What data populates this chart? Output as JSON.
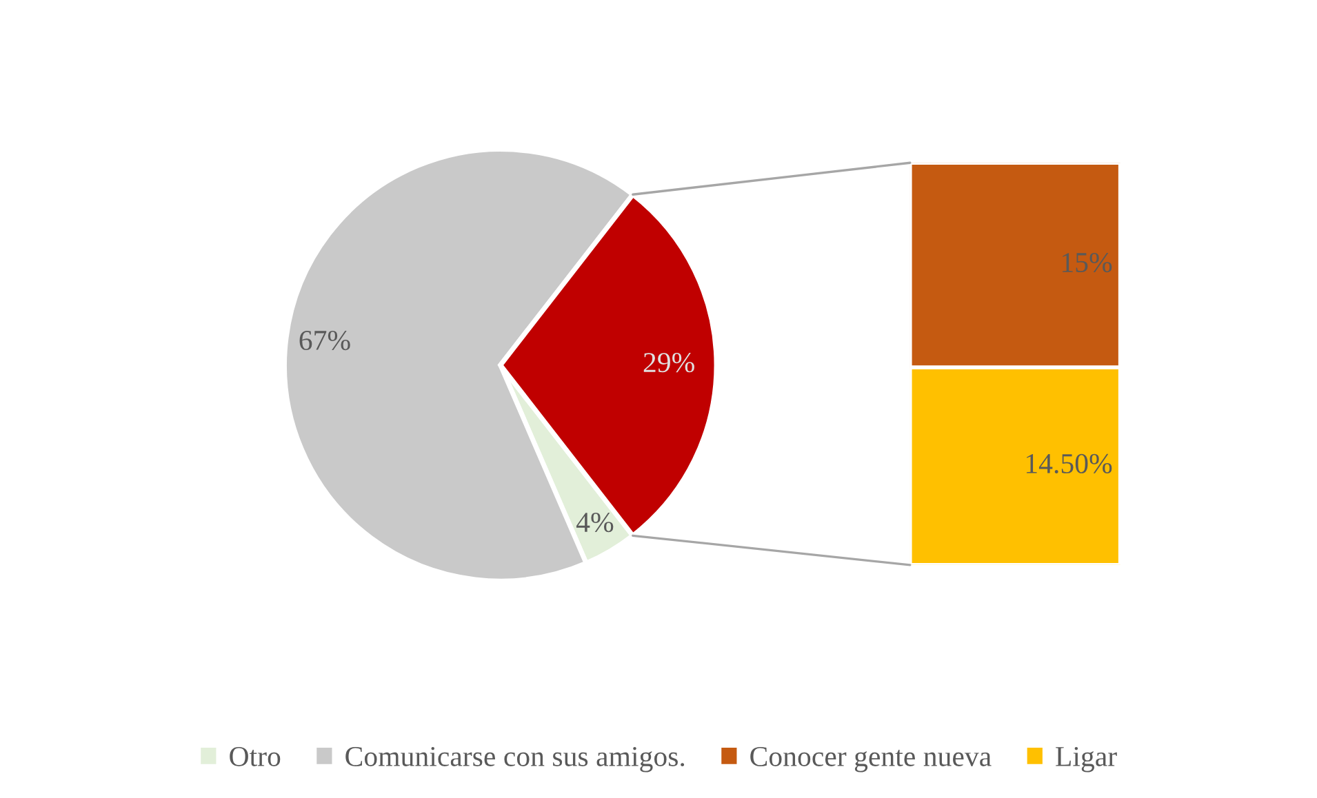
{
  "chart_data": [
    {
      "type": "pie",
      "categories": [
        "Otro",
        "Comunicarse con sus amigos.",
        null
      ],
      "values": [
        4,
        67,
        29
      ],
      "colors": [
        "#e2efd9",
        "#c9c9c9",
        "#c00000"
      ],
      "value_labels": [
        "4%",
        "67%",
        "29%"
      ],
      "legend": "bottom"
    },
    {
      "type": "bar",
      "stacked": true,
      "categories": [
        null
      ],
      "series": [
        {
          "name": "Ligar",
          "color": "#ffc000",
          "values": [
            14.5
          ],
          "value_labels": [
            "14.50%"
          ]
        },
        {
          "name": "Conocer gente nueva",
          "color": "#c55a11",
          "values": [
            15
          ],
          "value_labels": [
            "15%"
          ]
        }
      ],
      "tick_labels": false,
      "legend": "bottom"
    }
  ]
}
